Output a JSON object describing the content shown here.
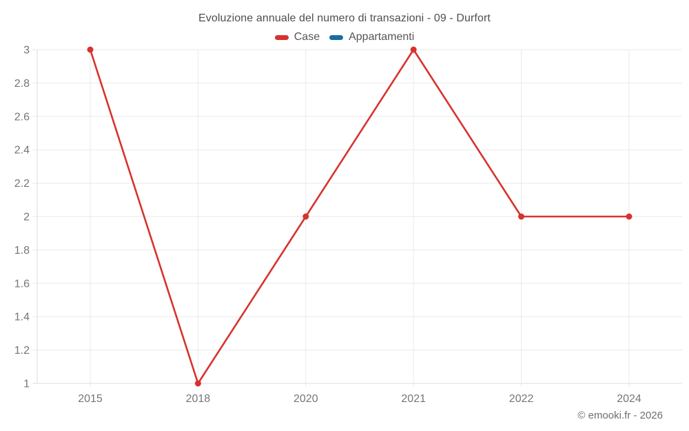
{
  "chart": {
    "title": "Evoluzione annuale del numero di transazioni - 09 - Durfort",
    "legend": [
      {
        "label": "Case",
        "color": "#d7322e"
      },
      {
        "label": "Appartamenti",
        "color": "#1b6ca3"
      }
    ],
    "footer": "© emooki.fr - 2026"
  },
  "colors": {
    "series_case": "#d7322e",
    "series_appartamenti": "#1b6ca3",
    "gridline": "#e9e9e9",
    "axis_line": "#dcdcdc",
    "tick_text": "#757575",
    "title_text": "#4f4f4f",
    "footer_text": "#6e6e6e"
  },
  "chart_data": {
    "type": "line",
    "title": "Evoluzione annuale del numero di transazioni - 09 - Durfort",
    "categories": [
      "2015",
      "2018",
      "2020",
      "2021",
      "2022",
      "2024"
    ],
    "series": [
      {
        "name": "Case",
        "color": "#d7322e",
        "values": [
          3,
          1,
          2,
          3,
          2,
          2
        ]
      },
      {
        "name": "Appartamenti",
        "color": "#1b6ca3",
        "values": []
      }
    ],
    "xlabel": "",
    "ylabel": "",
    "ylim": [
      1,
      3
    ],
    "yticks": [
      1,
      1.2,
      1.4,
      1.6,
      1.8,
      2,
      2.2,
      2.4,
      2.6,
      2.8,
      3
    ],
    "grid": true,
    "legend_position": "top",
    "marker": "circle"
  }
}
